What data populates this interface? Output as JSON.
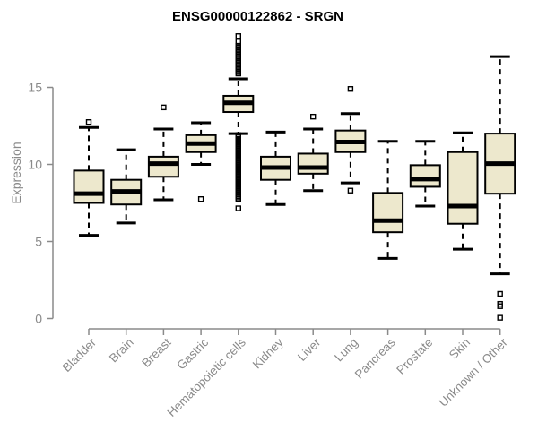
{
  "chart_data": {
    "type": "boxplot",
    "title": "ENSG00000122862 - SRGN",
    "ylabel": "Expression",
    "yticks": [
      0,
      5,
      10,
      15
    ],
    "ylim": [
      0,
      18.5
    ],
    "grid": false,
    "categories": [
      "Bladder",
      "Brain",
      "Breast",
      "Gastric",
      "Hematopoietic cells",
      "Kidney",
      "Liver",
      "Lung",
      "Pancreas",
      "Prostate",
      "Skin",
      "Unknown / Other"
    ],
    "series": [
      {
        "label": "Bladder",
        "whisker_low": 5.4,
        "q1": 7.5,
        "median": 8.1,
        "q3": 9.6,
        "whisker_high": 12.4,
        "outliers": [
          12.75
        ]
      },
      {
        "label": "Brain",
        "whisker_low": 6.2,
        "q1": 7.4,
        "median": 8.25,
        "q3": 9.0,
        "whisker_high": 10.95,
        "outliers": []
      },
      {
        "label": "Breast",
        "whisker_low": 7.7,
        "q1": 9.2,
        "median": 10.05,
        "q3": 10.5,
        "whisker_high": 12.3,
        "outliers": [
          13.7
        ]
      },
      {
        "label": "Gastric",
        "whisker_low": 10.0,
        "q1": 10.8,
        "median": 11.35,
        "q3": 11.9,
        "whisker_high": 12.7,
        "outliers": [
          7.75
        ]
      },
      {
        "label": "Hematopoietic cells",
        "whisker_low": 12.0,
        "q1": 13.4,
        "median": 14.0,
        "q3": 14.45,
        "whisker_high": 15.55,
        "outliers": [
          18.33,
          17.98,
          17.7,
          17.6,
          17.5,
          17.4,
          17.3,
          17.2,
          17.1,
          17.0,
          16.9,
          16.8,
          16.7,
          16.6,
          16.5,
          16.4,
          16.3,
          16.2,
          16.1,
          16.0,
          15.9,
          11.9,
          11.78,
          11.66,
          11.54,
          11.42,
          11.3,
          11.18,
          11.06,
          10.94,
          10.82,
          10.7,
          10.58,
          10.46,
          10.34,
          10.22,
          10.1,
          9.98,
          9.86,
          9.74,
          9.62,
          9.5,
          9.38,
          9.26,
          9.14,
          9.02,
          8.9,
          8.78,
          8.66,
          8.54,
          8.42,
          8.3,
          8.18,
          8.06,
          7.94,
          7.85,
          7.75,
          7.15
        ]
      },
      {
        "label": "Kidney",
        "whisker_low": 7.4,
        "q1": 9.0,
        "median": 9.8,
        "q3": 10.5,
        "whisker_high": 12.1,
        "outliers": []
      },
      {
        "label": "Liver",
        "whisker_low": 8.3,
        "q1": 9.4,
        "median": 9.8,
        "q3": 10.7,
        "whisker_high": 12.3,
        "outliers": [
          13.1
        ]
      },
      {
        "label": "Lung",
        "whisker_low": 8.8,
        "q1": 10.8,
        "median": 11.45,
        "q3": 12.2,
        "whisker_high": 13.3,
        "outliers": [
          14.9,
          8.3
        ]
      },
      {
        "label": "Pancreas",
        "whisker_low": 3.9,
        "q1": 5.6,
        "median": 6.35,
        "q3": 8.15,
        "whisker_high": 11.5,
        "outliers": []
      },
      {
        "label": "Prostate",
        "whisker_low": 7.3,
        "q1": 8.55,
        "median": 9.05,
        "q3": 9.95,
        "whisker_high": 11.5,
        "outliers": []
      },
      {
        "label": "Skin",
        "whisker_low": 4.5,
        "q1": 6.15,
        "median": 7.3,
        "q3": 10.8,
        "whisker_high": 12.05,
        "outliers": []
      },
      {
        "label": "Unknown / Other",
        "whisker_low": 2.9,
        "q1": 8.1,
        "median": 10.05,
        "q3": 12.0,
        "whisker_high": 17.0,
        "outliers": [
          1.6,
          0.95,
          0.8,
          0.05
        ]
      }
    ],
    "colors": {
      "box_fill": "#EDE8CD",
      "box_border": "#000000",
      "median": "#000000",
      "whisker": "#000000",
      "axis": "#8A8A8A",
      "tick_label": "#8A8A8A",
      "title": "#000000"
    }
  }
}
